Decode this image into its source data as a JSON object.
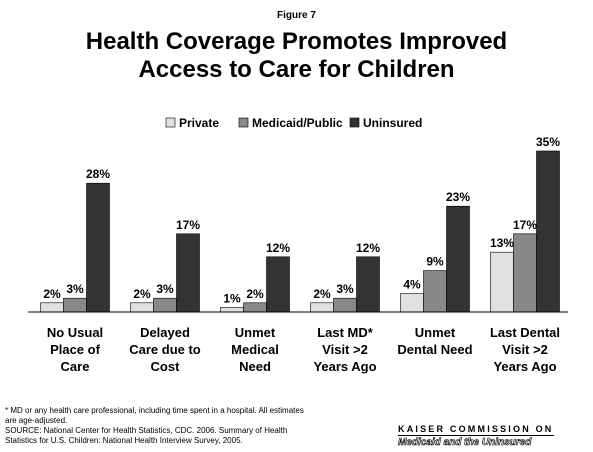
{
  "figure_label": "Figure 7",
  "title_lines": [
    "Health Coverage Promotes Improved",
    "Access to Care for Children"
  ],
  "footnote_lines": [
    "* MD or any health care professional, including time spent in a hospital.  All estimates",
    "are age-adjusted.",
    "SOURCE:  National Center for Health Statistics, CDC.  2006. Summary of Health",
    "Statistics for U.S. Children: National Health Interview Survey, 2005."
  ],
  "logo": {
    "top": "KAISER COMMISSION ON",
    "bottom": "Medicaid and the Uninsured"
  },
  "colors": {
    "private": "#e0e0e0",
    "medicaid": "#888888",
    "uninsured": "#333333"
  },
  "chart_data": {
    "type": "bar",
    "title": "Health Coverage Promotes Improved Access to Care for Children",
    "categories": [
      [
        "No Usual",
        "Place of",
        "Care"
      ],
      [
        "Delayed",
        "Care due to",
        "Cost"
      ],
      [
        "Unmet",
        "Medical",
        "Need"
      ],
      [
        "Last MD*",
        "Visit >2",
        "Years Ago"
      ],
      [
        "Unmet",
        "Dental Need"
      ],
      [
        "Last Dental",
        "Visit >2",
        "Years Ago"
      ]
    ],
    "series": [
      {
        "name": "Private",
        "values": [
          2,
          2,
          1,
          2,
          4,
          13
        ]
      },
      {
        "name": "Medicaid/Public",
        "values": [
          3,
          3,
          2,
          3,
          9,
          17
        ]
      },
      {
        "name": "Uninsured",
        "values": [
          28,
          17,
          12,
          12,
          23,
          35
        ]
      }
    ],
    "value_suffix": "%",
    "ylim": [
      0,
      35
    ],
    "legend_position": "top",
    "grid": false,
    "xlabel": "",
    "ylabel": ""
  }
}
